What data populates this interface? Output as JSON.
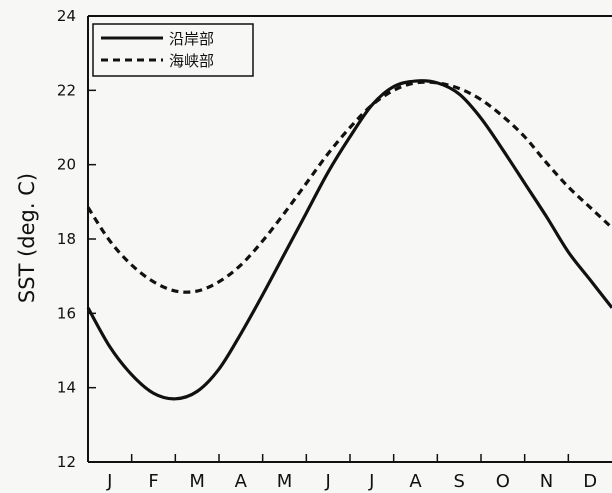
{
  "chart_data": {
    "type": "line",
    "title": "",
    "xlabel": "",
    "ylabel": "SST (deg. C)",
    "ylim": [
      12,
      24
    ],
    "yticks": [
      12,
      14,
      16,
      18,
      20,
      22,
      24
    ],
    "x_range": [
      0,
      12
    ],
    "categories": [
      "J",
      "F",
      "M",
      "A",
      "M",
      "J",
      "J",
      "A",
      "S",
      "O",
      "N",
      "D"
    ],
    "legend_position": "top-left",
    "grid": false,
    "series": [
      {
        "name": "沿岸部",
        "style": "solid",
        "color": "#111111",
        "x": [
          0,
          0.5,
          1,
          1.5,
          2,
          2.5,
          3,
          3.5,
          4,
          4.5,
          5,
          5.5,
          6,
          6.5,
          7,
          7.5,
          8,
          8.5,
          9,
          9.5,
          10,
          10.5,
          11,
          11.5,
          12
        ],
        "y": [
          16.15,
          15.1,
          14.35,
          13.85,
          13.7,
          13.9,
          14.5,
          15.45,
          16.5,
          17.6,
          18.7,
          19.8,
          20.75,
          21.6,
          22.1,
          22.25,
          22.2,
          21.9,
          21.25,
          20.4,
          19.5,
          18.6,
          17.65,
          16.9,
          16.15
        ]
      },
      {
        "name": "海峡部",
        "style": "dashed",
        "color": "#111111",
        "x": [
          0,
          0.5,
          1,
          1.5,
          2,
          2.5,
          3,
          3.5,
          4,
          4.5,
          5,
          5.5,
          6,
          6.5,
          7,
          7.5,
          8,
          8.5,
          9,
          9.5,
          10,
          10.5,
          11,
          11.5,
          12
        ],
        "y": [
          18.85,
          17.95,
          17.3,
          16.85,
          16.6,
          16.6,
          16.85,
          17.3,
          17.95,
          18.7,
          19.5,
          20.3,
          21.0,
          21.6,
          22.0,
          22.2,
          22.2,
          22.05,
          21.75,
          21.3,
          20.75,
          20.05,
          19.4,
          18.85,
          18.3
        ]
      }
    ]
  }
}
